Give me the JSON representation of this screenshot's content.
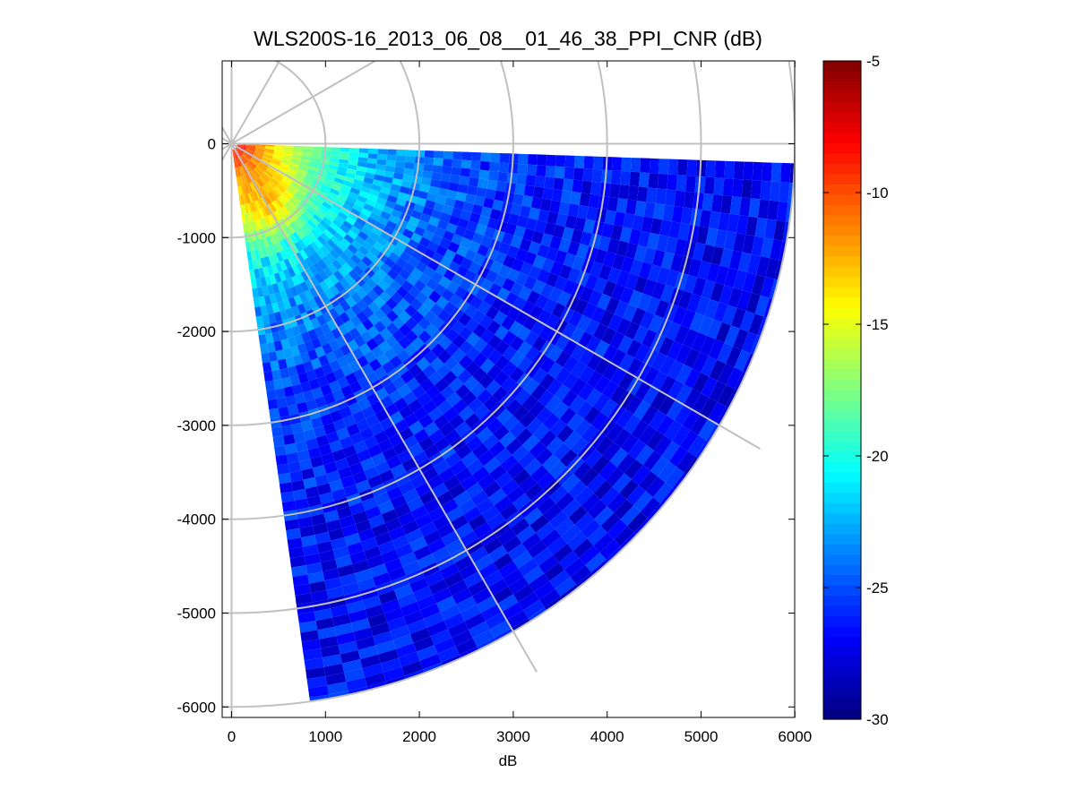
{
  "chart_data": {
    "type": "heatmap",
    "subtype": "polar-ppi-sector",
    "title": "WLS200S-16_2013_06_08__01_46_38_PPI_CNR (dB)",
    "xlabel": "dB",
    "ylabel": "",
    "xlim": [
      -100,
      6000
    ],
    "ylim": [
      -6100,
      900
    ],
    "x_ticks": [
      0,
      1000,
      2000,
      3000,
      4000,
      5000,
      6000
    ],
    "y_ticks": [
      0,
      -1000,
      -2000,
      -3000,
      -4000,
      -5000,
      -6000
    ],
    "x_tick_labels": [
      "0",
      "1000",
      "2000",
      "3000",
      "4000",
      "5000",
      "6000"
    ],
    "y_tick_labels": [
      "0",
      "-1000",
      "-2000",
      "-3000",
      "-4000",
      "-5000",
      "-6000"
    ],
    "colorbar": {
      "colormap": "jet",
      "range": [
        -30,
        -5
      ],
      "ticks": [
        -5,
        -10,
        -15,
        -20,
        -25,
        -30
      ],
      "tick_labels": [
        "-5",
        "-10",
        "-15",
        "-20",
        "-25",
        "-30"
      ]
    },
    "sector": {
      "azimuth_start_deg": 92,
      "azimuth_end_deg": 172,
      "range_max_m": 6000,
      "range_gate_m": 100,
      "azimuth_step_deg": 2
    },
    "grid": {
      "ring_ranges_m": [
        1000,
        2000,
        3000,
        4000,
        5000,
        6000
      ],
      "spoke_angles_deg": [
        0,
        30,
        60,
        90,
        120,
        150,
        180
      ],
      "color": "#c0c0c0"
    },
    "cnr_model": {
      "near_max_db": -7,
      "far_min_db": -27,
      "hotspot_range_m": 800,
      "hotspot_bearing_deg": 150,
      "hotspot_peak_db": -6
    }
  }
}
